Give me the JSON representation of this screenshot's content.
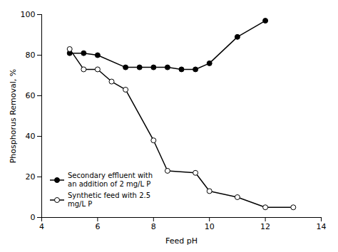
{
  "chart_data": {
    "type": "line",
    "xlabel": "Feed pH",
    "ylabel": "Phosphorus Removal, %",
    "xlim": [
      4,
      14
    ],
    "ylim": [
      0,
      100
    ],
    "xticks": [
      4,
      6,
      8,
      10,
      12,
      14
    ],
    "yticks": [
      0,
      20,
      40,
      60,
      80,
      100
    ],
    "grid": false,
    "legend": "lower left",
    "series": [
      {
        "name": "Secondary effluent with\nan addition of 2 mg/L P",
        "color": "black",
        "marker": "filled_circle",
        "x": [
          5.0,
          5.5,
          6.0,
          7.0,
          7.5,
          8.0,
          8.5,
          9.0,
          9.5,
          10.0,
          11.0,
          12.0
        ],
        "values": [
          81,
          81,
          80,
          74,
          74,
          74,
          74,
          73,
          73,
          76,
          89,
          97
        ]
      },
      {
        "name": "Synthetic feed with 2.5\nmg/L P",
        "color": "black",
        "marker": "open_circle",
        "x": [
          5.0,
          5.5,
          6.0,
          6.5,
          7.0,
          8.0,
          8.5,
          9.5,
          10.0,
          11.0,
          12.0,
          13.0
        ],
        "values": [
          83,
          73,
          73,
          67,
          63,
          38,
          23,
          22,
          13,
          10,
          5,
          5
        ]
      }
    ]
  }
}
